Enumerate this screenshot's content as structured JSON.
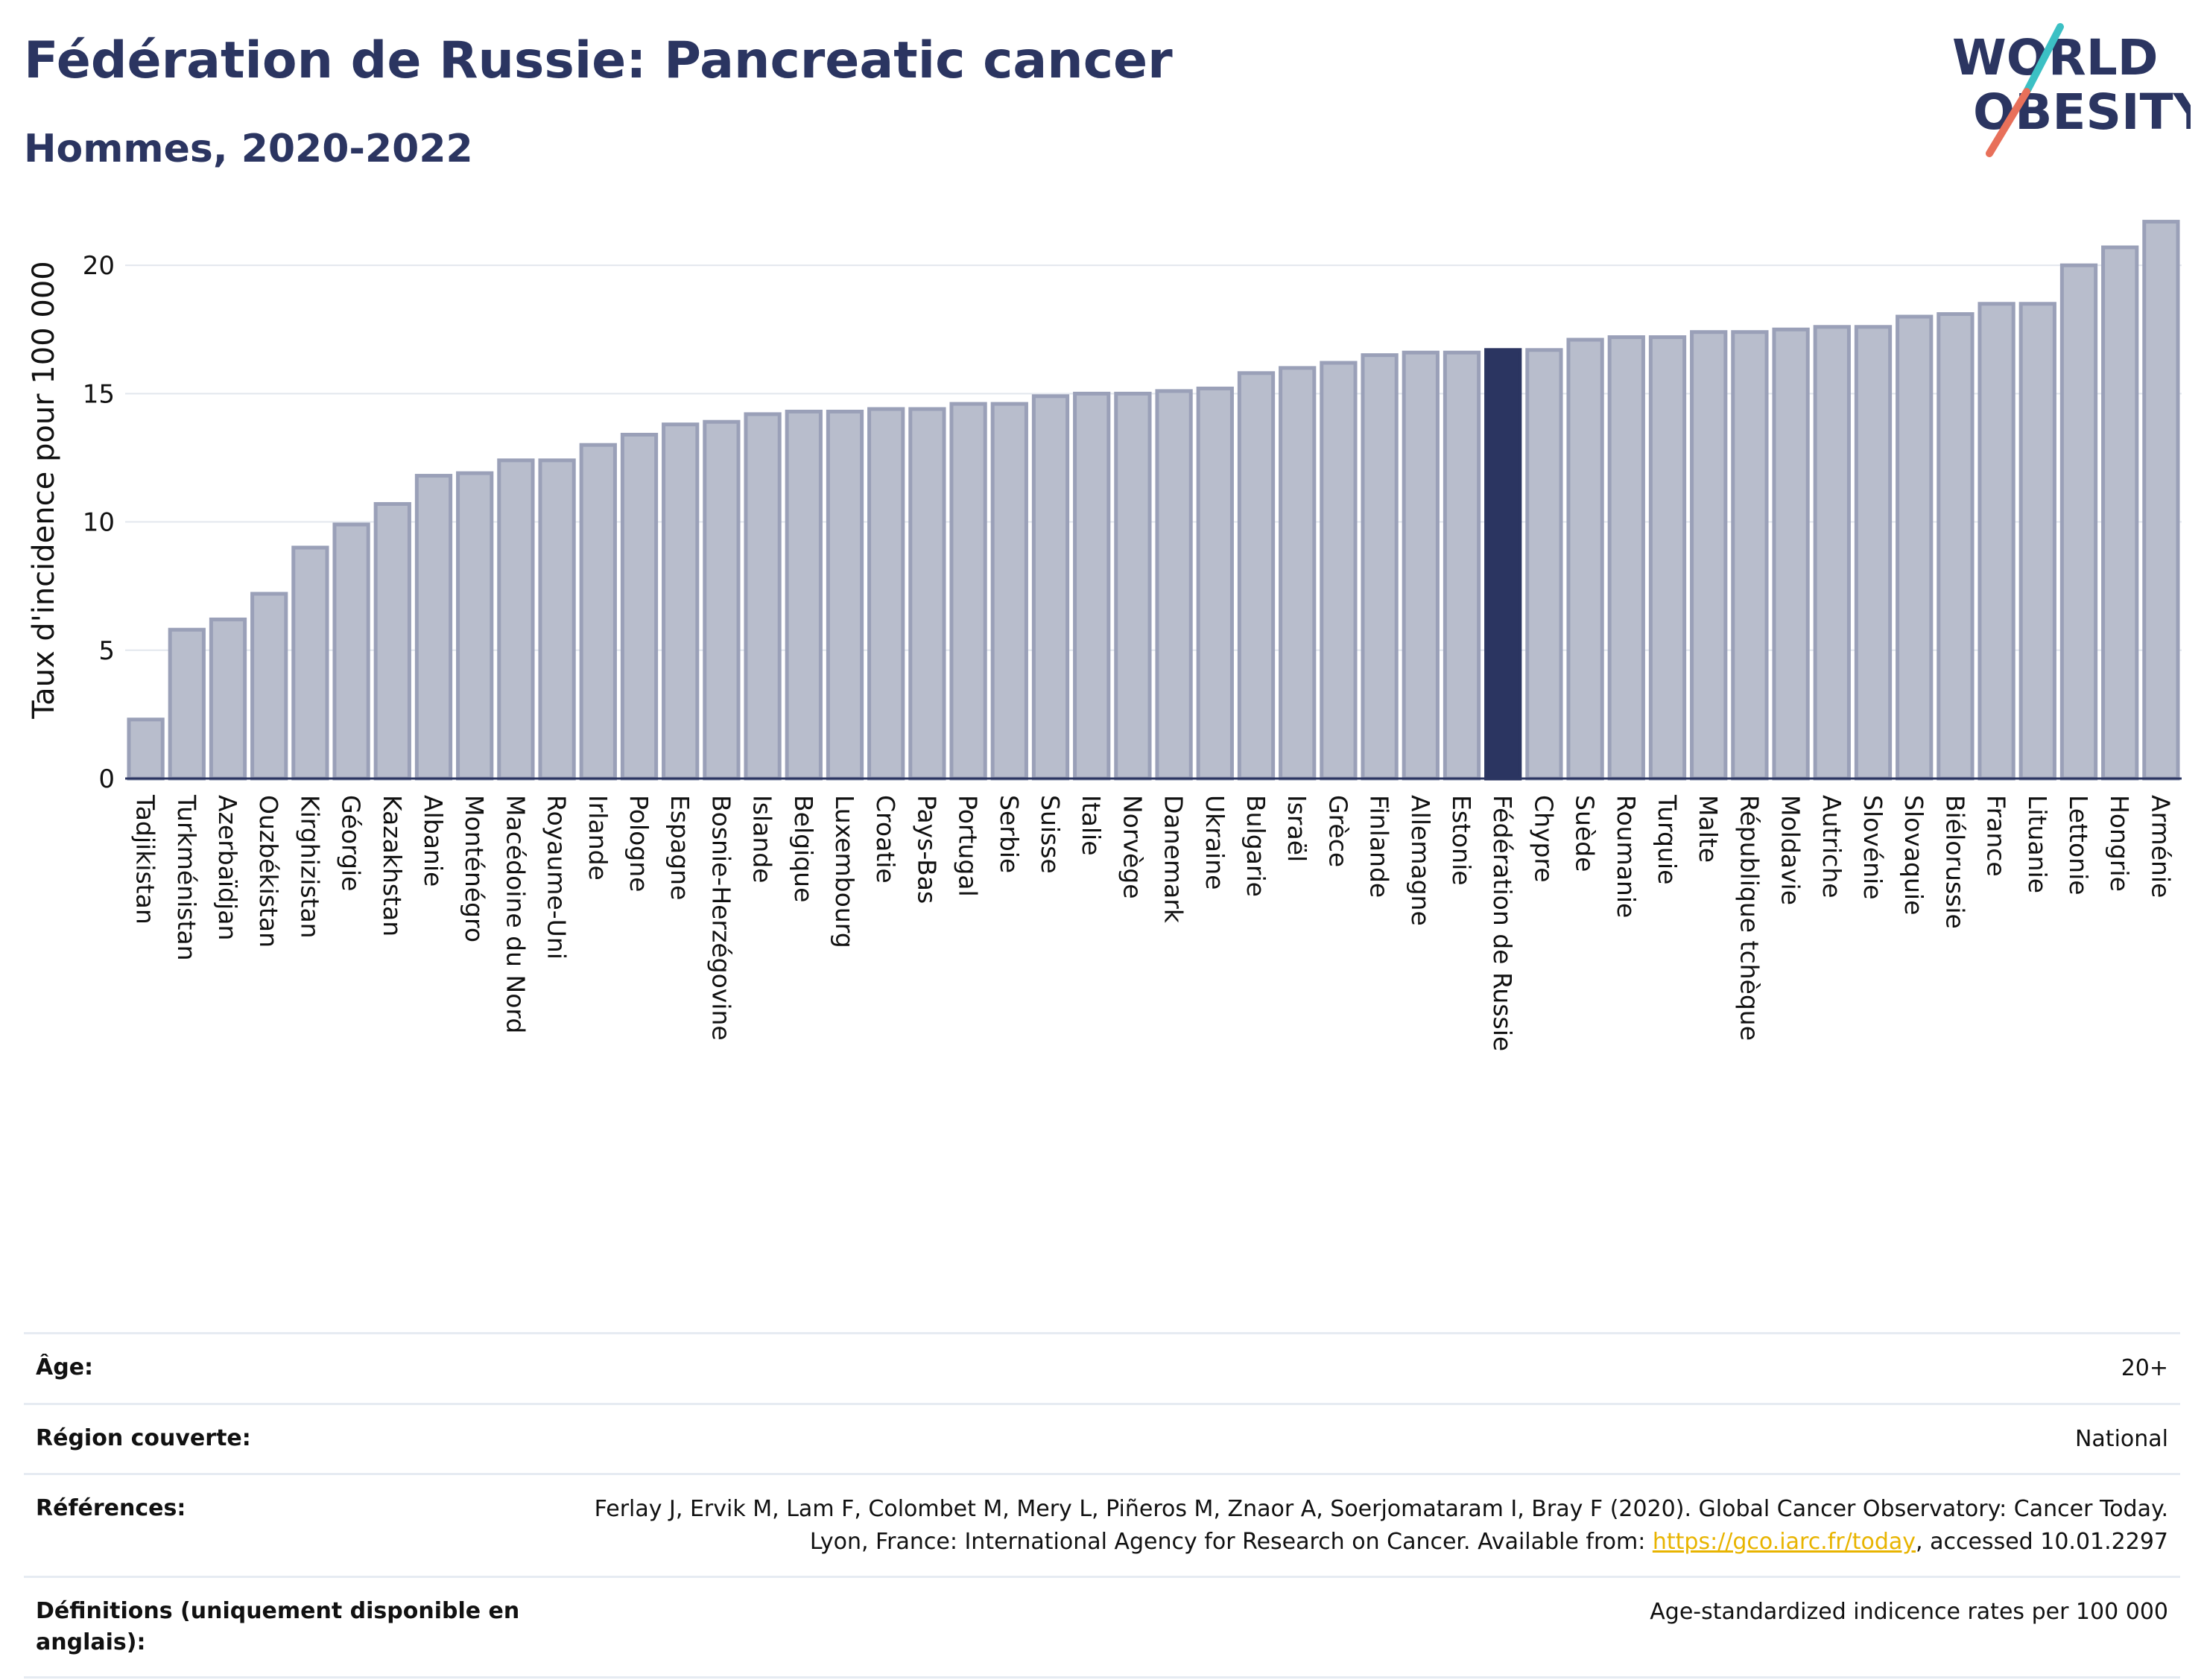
{
  "header": {
    "title": "Fédération de Russie: Pancreatic cancer",
    "subtitle": "Hommes, 2020-2022",
    "logo_line1": "WORLD",
    "logo_line2": "OBESITY"
  },
  "colors": {
    "bar": "#b8bdcc",
    "bar_border": "#9aa0b8",
    "highlight": "#2b3561",
    "title": "#2b3561",
    "link": "#e8b400",
    "logo_slash_top": "#3cc0c4",
    "logo_slash_bottom": "#e8705a"
  },
  "chart_data": {
    "type": "bar",
    "title": "",
    "xlabel": "",
    "ylabel": "Taux d'incidence pour 100 000",
    "ylim": [
      0,
      22.5
    ],
    "yticks": [
      0,
      5,
      10,
      15,
      20
    ],
    "grid": true,
    "highlight": "Fédération de Russie",
    "categories": [
      "Tadjikistan",
      "Turkménistan",
      "Azerbaïdjan",
      "Ouzbékistan",
      "Kirghizistan",
      "Géorgie",
      "Kazakhstan",
      "Albanie",
      "Monténégro",
      "Macédoine du Nord",
      "Royaume-Uni",
      "Irlande",
      "Pologne",
      "Espagne",
      "Bosnie-Herzégovine",
      "Islande",
      "Belgique",
      "Luxembourg",
      "Croatie",
      "Pays-Bas",
      "Portugal",
      "Serbie",
      "Suisse",
      "Italie",
      "Norvège",
      "Danemark",
      "Ukraine",
      "Bulgarie",
      "Israël",
      "Grèce",
      "Finlande",
      "Allemagne",
      "Estonie",
      "Fédération de Russie",
      "Chypre",
      "Suède",
      "Roumanie",
      "Turquie",
      "Malte",
      "République tchèque",
      "Moldavie",
      "Autriche",
      "Slovénie",
      "Slovaquie",
      "Biélorussie",
      "France",
      "Lituanie",
      "Lettonie",
      "Hongrie",
      "Arménie"
    ],
    "values": [
      2.3,
      5.8,
      6.2,
      7.2,
      9.0,
      9.9,
      10.7,
      11.8,
      11.9,
      12.4,
      12.4,
      13.0,
      13.4,
      13.8,
      13.9,
      14.2,
      14.3,
      14.3,
      14.4,
      14.4,
      14.6,
      14.6,
      14.9,
      15.0,
      15.0,
      15.1,
      15.2,
      15.8,
      16.0,
      16.2,
      16.5,
      16.6,
      16.6,
      16.7,
      16.7,
      17.1,
      17.2,
      17.2,
      17.4,
      17.4,
      17.5,
      17.6,
      17.6,
      18.0,
      18.1,
      18.5,
      18.5,
      20.0,
      20.7,
      21.7
    ]
  },
  "info": {
    "age_label": "Âge:",
    "age_value": "20+",
    "region_label": "Région couverte:",
    "region_value": "National",
    "refs_label": "Références:",
    "refs_text": "Ferlay J, Ervik M, Lam F, Colombet M, Mery L, Piñeros M, Znaor A, Soerjomataram I, Bray F (2020). Global Cancer Observatory: Cancer Today. Lyon, France: International Agency for Research on Cancer. Available from: ",
    "refs_link": "https://gco.iarc.fr/today",
    "refs_suffix": ", accessed 10.01.2297",
    "defs_label": "Définitions (uniquement disponible en anglais):",
    "defs_value": "Age-standardized indicence rates per 100 000"
  }
}
